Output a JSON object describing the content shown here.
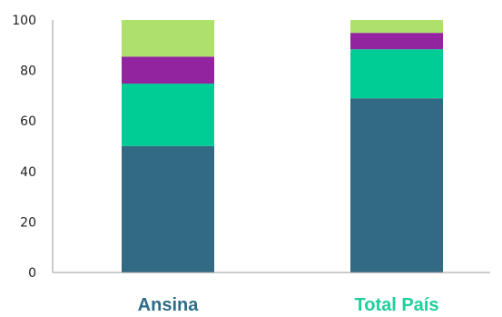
{
  "chart_data": {
    "type": "bar",
    "stacked": true,
    "categories": [
      "Ansina",
      "Total País"
    ],
    "category_label_colors": [
      "#2d6c86",
      "#1ecf9b"
    ],
    "series": [
      {
        "color": "#326a84",
        "values": [
          50.1,
          69.0
        ]
      },
      {
        "color": "#00cc96",
        "values": [
          24.7,
          19.4
        ]
      },
      {
        "color": "#93249f",
        "values": [
          10.7,
          6.5
        ]
      },
      {
        "color": "#aee06c",
        "values": [
          14.5,
          5.1
        ]
      }
    ],
    "ylim": [
      0,
      100
    ],
    "yticks": [
      "0",
      "20",
      "40",
      "60",
      "80",
      "100"
    ],
    "grid": false,
    "legend": "none"
  }
}
